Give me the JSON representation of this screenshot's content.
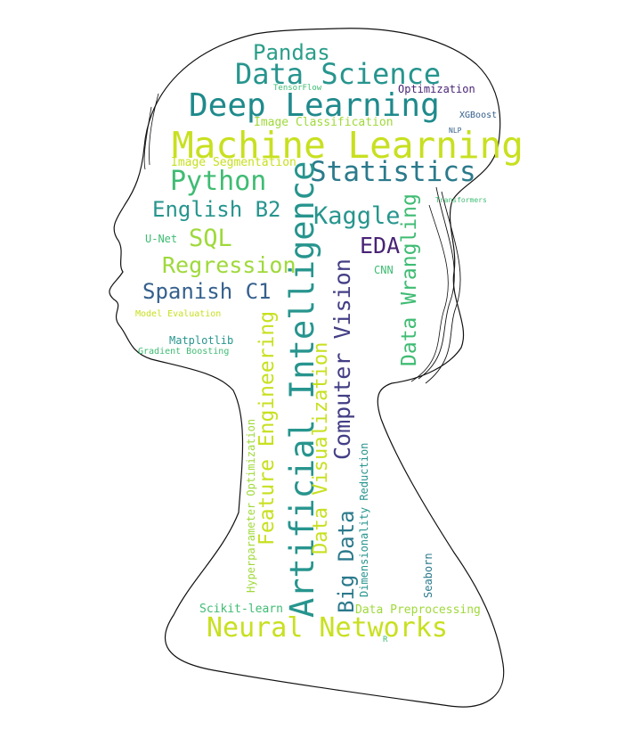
{
  "words": {
    "machine_learning": "Machine Learning",
    "deep_learning": "Deep Learning",
    "data_science": "Data Science",
    "pandas": "Pandas",
    "tensorflow": "TensorFlow",
    "optimization": "Optimization",
    "image_classification": "Image Classification",
    "xgboost": "XGBoost",
    "nlp": "NLP",
    "image_segmentation": "Image Segmentation",
    "statistics": "Statistics",
    "python": "Python",
    "english": "English B2",
    "kaggle": "Kaggle",
    "transformers": "Transformers",
    "unet": "U-Net",
    "sql": "SQL",
    "eda": "EDA",
    "regression": "Regression",
    "cnn": "CNN",
    "spanish": "Spanish C1",
    "model_evaluation": "Model Evaluation",
    "matplotlib": "Matplotlib",
    "gradient_boosting": "Gradient Boosting",
    "artificial_intelligence": "Artificial Intelligence",
    "computer_vision": "Computer Vision",
    "data_wrangling": "Data Wrangling",
    "feature_engineering": "Feature Engineering",
    "data_visualization": "Data Visualization",
    "hyperparameter_optimization": "Hyperparameter Optimization",
    "big_data": "Big Data",
    "dimensionality_reduction": "Dimensionality Reduction",
    "seaborn": "Seaborn",
    "scikit_learn": "Scikit-learn",
    "data_preprocessing": "Data Preprocessing",
    "neural_networks": "Neural Networks",
    "r": "R"
  },
  "palette": {
    "yellow_green": "#c8e020",
    "light_green": "#9fd93a",
    "green": "#3fbc73",
    "teal": "#27958e",
    "teal_dark": "#2b7a8c",
    "blue": "#35608d",
    "indigo": "#433e85",
    "purple": "#482475"
  }
}
